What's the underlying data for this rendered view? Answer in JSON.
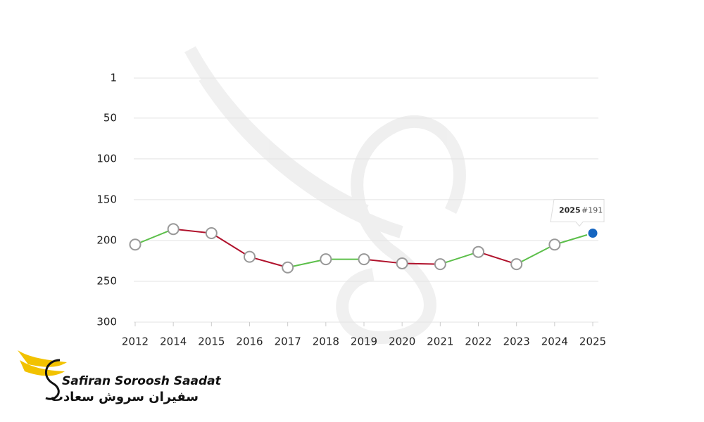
{
  "chart_data": {
    "type": "line",
    "categories": [
      "2012",
      "2014",
      "2015",
      "2016",
      "2017",
      "2018",
      "2019",
      "2020",
      "2021",
      "2022",
      "2023",
      "2024",
      "2025"
    ],
    "values": [
      205,
      186,
      191,
      220,
      233,
      223,
      223,
      228,
      229,
      214,
      229,
      205,
      191
    ],
    "value_labels": [
      null,
      null,
      null,
      null,
      null,
      null,
      null,
      null,
      null,
      null,
      null,
      null,
      "#191"
    ],
    "ylim": [
      1,
      300
    ],
    "yticks": [
      1,
      50,
      100,
      150,
      200,
      250,
      300
    ],
    "y_reversed": true,
    "grid": true,
    "up_color": "#5cbf4a",
    "down_color": "#b0122c",
    "highlight_color": "#1565c0"
  },
  "logo": {
    "name": "Safiran Soroosh Saadat",
    "name_fa": "سفیران سروش سعادت"
  }
}
